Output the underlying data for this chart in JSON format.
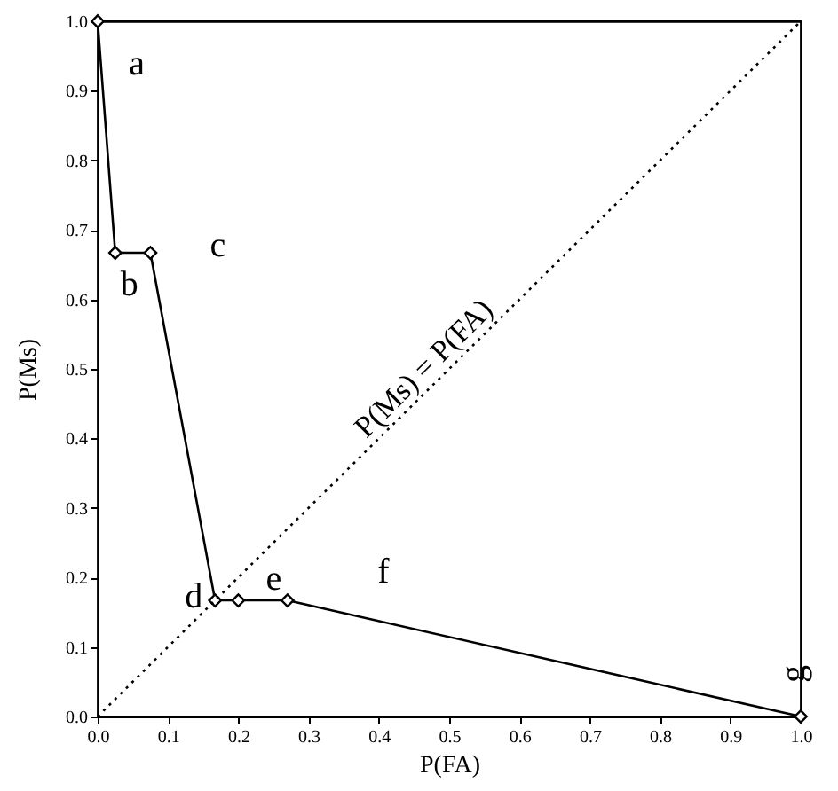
{
  "chart_data": {
    "type": "line",
    "xlabel": "P(FA)",
    "ylabel": "P(Ms)",
    "xlim": [
      0,
      1
    ],
    "ylim": [
      0,
      1
    ],
    "xticks": [
      {
        "value": 0,
        "label": "0.0"
      },
      0.1,
      0.2,
      0.3,
      0.4,
      0.5,
      0.6,
      0.7,
      0.8,
      0.9,
      {
        "value": 1,
        "label": "1.0"
      }
    ],
    "yticks": [
      {
        "value": 0,
        "label": "0.0"
      },
      0.1,
      0.2,
      0.3,
      0.4,
      0.5,
      0.6,
      0.7,
      0.8,
      0.9,
      {
        "value": 1,
        "label": "1.0"
      }
    ],
    "grid": false,
    "series": [
      {
        "color": "#000000",
        "marker": "diamond",
        "line_style": "solid",
        "x": [
          0,
          0.025,
          0.075,
          0.167,
          0.2,
          0.27,
          1
        ],
        "values": [
          1,
          0.667,
          0.667,
          0.167,
          0.167,
          0.167,
          0
        ]
      },
      {
        "color": "#000000",
        "marker": "none",
        "line_style": "dotted",
        "x": [
          0,
          1
        ],
        "values": [
          0,
          1
        ]
      }
    ],
    "annotations": [
      {
        "text": "a",
        "x": 0,
        "y": 1
      },
      {
        "text": "b",
        "x": 0.025,
        "y": 0.667
      },
      {
        "text": "c",
        "x": 0.075,
        "y": 0.667
      },
      {
        "text": "d",
        "x": 0.167,
        "y": 0.167
      },
      {
        "text": "e",
        "x": 0.2,
        "y": 0.167
      },
      {
        "text": "f",
        "x": 0.27,
        "y": 0.167
      },
      {
        "text": "g",
        "x": 1,
        "y": 0
      },
      {
        "text": "P(Ms) = P(FA)",
        "x": 0.5,
        "y": 0.5
      }
    ]
  }
}
